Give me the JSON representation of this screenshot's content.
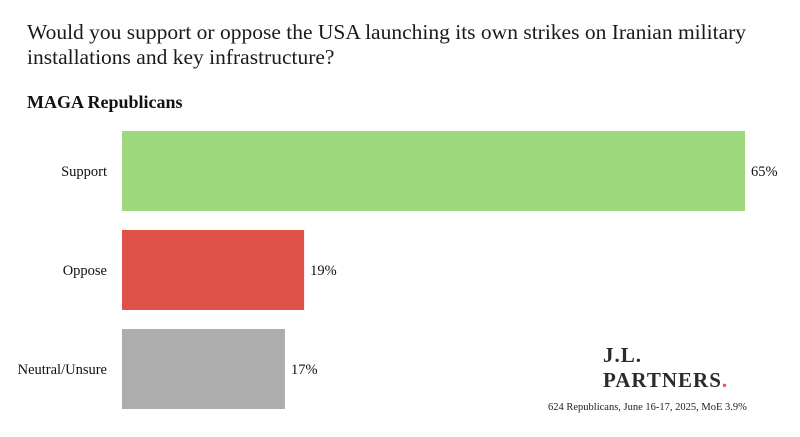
{
  "question": "Would you support or oppose the USA launching its own strikes on Iranian military installations and key infrastructure?",
  "subtitle": "MAGA Republicans",
  "brand": {
    "line1": "J.L.",
    "line2": "PARTNERS",
    "dot": "."
  },
  "footnote": "624 Republicans, June 16-17, 2025, MoE 3.9%",
  "colors": {
    "support": "#9dd87c",
    "oppose": "#de5146",
    "neutral": "#adadad"
  },
  "chart_data": {
    "type": "bar",
    "orientation": "horizontal",
    "title": "Would you support or oppose the USA launching its own strikes on Iranian military installations and key infrastructure?",
    "subtitle": "MAGA Republicans",
    "categories": [
      "Support",
      "Oppose",
      "Neutral/Unsure"
    ],
    "values": [
      65,
      19,
      17
    ],
    "value_labels": [
      "65%",
      "19%",
      "17%"
    ],
    "unit": "%",
    "xlim": [
      0,
      65
    ],
    "grid": false,
    "legend": "none"
  }
}
